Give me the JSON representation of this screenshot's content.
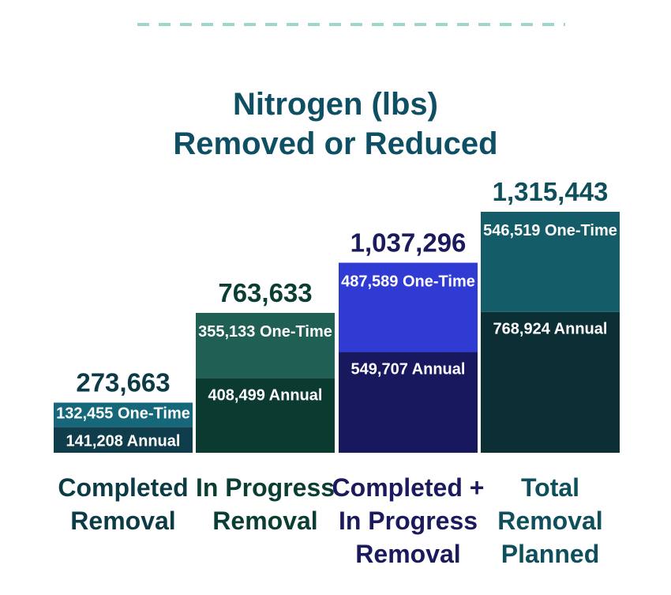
{
  "chart_data": {
    "type": "bar",
    "stacked": true,
    "title": [
      "Nitrogen (lbs)",
      "Removed or Reduced"
    ],
    "categories": [
      [
        "Completed",
        "Removal"
      ],
      [
        "In Progress",
        "Removal"
      ],
      [
        "Completed +",
        "In Progress",
        "Removal"
      ],
      [
        "Total",
        "Removal",
        "Planned"
      ]
    ],
    "totals": [
      273663,
      763633,
      1037296,
      1315443
    ],
    "total_labels": [
      "273,663",
      "763,633",
      "1,037,296",
      "1,315,443"
    ],
    "series": [
      {
        "name": "Annual",
        "values": [
          141208,
          408499,
          549707,
          768924
        ],
        "labels": [
          "141,208 Annual",
          "408,499 Annual",
          "549,707 Annual",
          "768,924 Annual"
        ]
      },
      {
        "name": "One-Time",
        "values": [
          132455,
          355133,
          487589,
          546519
        ],
        "labels": [
          "132,455 One-Time",
          "355,133 One-Time",
          "487,589 One-Time",
          "546,519 One-Time"
        ]
      }
    ],
    "colors": {
      "annual": [
        "#0f3d4c",
        "#0b3a30",
        "#17185e",
        "#0b2f35"
      ],
      "one_time": [
        "#16677a",
        "#1f5f54",
        "#2f3bd2",
        "#145d68"
      ],
      "total_text": [
        "#0c3b46",
        "#0a3d33",
        "#1a1a5c",
        "#0f4f5c"
      ],
      "category_text": [
        "#0c3b46",
        "#0a3d33",
        "#1a1a5c",
        "#0f4f5c"
      ],
      "title": "#0f4f63",
      "divider": "#9fd6cb"
    },
    "grid": false,
    "legend": "none"
  }
}
